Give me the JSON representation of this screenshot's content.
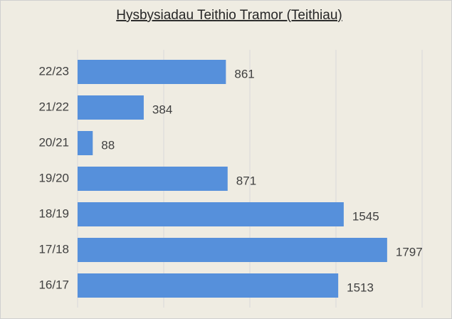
{
  "chart_data": {
    "type": "barh",
    "title": "Hysbysiadau Teithio Tramor (Teithiau)",
    "categories": [
      "22/23",
      "21/22",
      "20/21",
      "19/20",
      "18/19",
      "17/18",
      "16/17"
    ],
    "values": [
      861,
      384,
      88,
      871,
      1545,
      1797,
      1513
    ],
    "color": "#5690db",
    "xlim": [
      0,
      2000
    ],
    "xticks": [
      0,
      500,
      1000,
      1500,
      2000
    ],
    "grid": true
  }
}
